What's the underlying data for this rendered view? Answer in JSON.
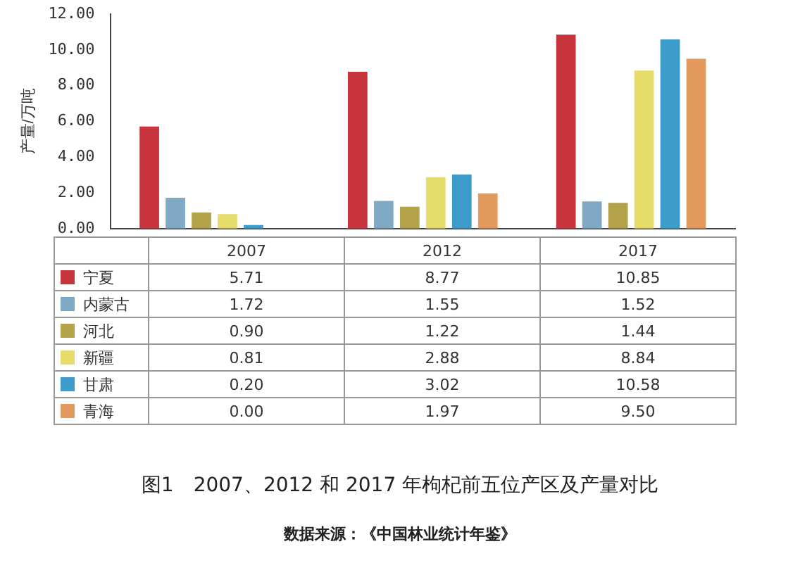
{
  "chart_data": {
    "type": "bar",
    "title": "图1　2007、2012 和 2017 年枸杞前五位产区及产量对比",
    "ylabel": "产量/万吨",
    "categories": [
      "2007",
      "2012",
      "2017"
    ],
    "series": [
      {
        "name": "宁夏",
        "color": "#c8343c",
        "values": [
          5.71,
          8.77,
          10.85
        ],
        "value_labels": [
          "5.71",
          "8.77",
          "10.85"
        ]
      },
      {
        "name": "内蒙古",
        "color": "#7fa9c4",
        "values": [
          1.72,
          1.55,
          1.52
        ],
        "value_labels": [
          "1.72",
          "1.55",
          "1.52"
        ]
      },
      {
        "name": "河北",
        "color": "#b3a24a",
        "values": [
          0.9,
          1.22,
          1.44
        ],
        "value_labels": [
          "0.90",
          "1.22",
          "1.44"
        ]
      },
      {
        "name": "新疆",
        "color": "#e6dc6a",
        "values": [
          0.81,
          2.88,
          8.84
        ],
        "value_labels": [
          "0.81",
          "2.88",
          "8.84"
        ]
      },
      {
        "name": "甘肃",
        "color": "#3d9ccc",
        "values": [
          0.2,
          3.02,
          10.58
        ],
        "value_labels": [
          "0.20",
          "3.02",
          "10.58"
        ]
      },
      {
        "name": "青海",
        "color": "#e39a5c",
        "values": [
          0.0,
          1.97,
          9.5
        ],
        "value_labels": [
          "0.00",
          "1.97",
          "9.50"
        ]
      }
    ],
    "ylim": [
      0,
      12
    ],
    "yticks": [
      {
        "value": 0,
        "label": "0.00"
      },
      {
        "value": 2,
        "label": "2.00"
      },
      {
        "value": 4,
        "label": "4.00"
      },
      {
        "value": 6,
        "label": "6.00"
      },
      {
        "value": 8,
        "label": "8.00"
      },
      {
        "value": 10,
        "label": "10.00"
      },
      {
        "value": 12,
        "label": "12.00"
      }
    ],
    "tick_labels": "y",
    "grid": false,
    "legend": "bottom",
    "annotations": [
      "数据来源：《中国林业统计年鉴》"
    ]
  }
}
